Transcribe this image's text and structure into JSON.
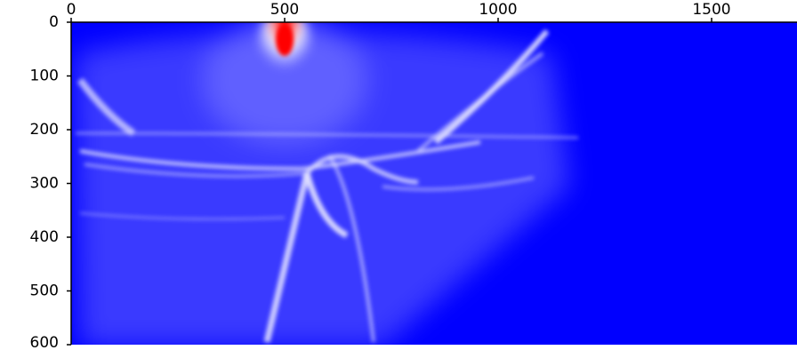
{
  "chart_data": {
    "type": "heatmap",
    "xlim": [
      0,
      1700
    ],
    "xticks": [
      0,
      500,
      1000,
      1500
    ],
    "x_axis_position": "top",
    "ylim": [
      600,
      0
    ],
    "yticks": [
      0,
      100,
      200,
      300,
      400,
      500,
      600
    ]
  }
}
